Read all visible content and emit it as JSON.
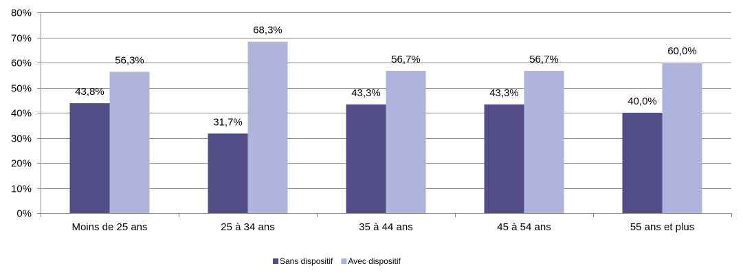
{
  "chart_data": {
    "type": "bar",
    "categories": [
      "Moins de 25 ans",
      "25 à 34 ans",
      "35 à 44 ans",
      "45 à 54 ans",
      "55 ans et plus"
    ],
    "series": [
      {
        "name": "Sans dispositif",
        "color": "#534d87",
        "values": [
          43.8,
          31.7,
          43.3,
          43.3,
          40.0
        ],
        "labels": [
          "43,8%",
          "31,7%",
          "43,3%",
          "43,3%",
          "40,0%"
        ]
      },
      {
        "name": "Avec dispositif",
        "color": "#afb4dc",
        "values": [
          56.3,
          68.3,
          56.7,
          56.7,
          60.0
        ],
        "labels": [
          "56,3%",
          "68,3%",
          "56,7%",
          "56,7%",
          "60,0%"
        ]
      }
    ],
    "ylim": [
      0,
      80
    ],
    "y_ticks": [
      0,
      10,
      20,
      30,
      40,
      50,
      60,
      70,
      80
    ],
    "y_tick_labels": [
      "0%",
      "10%",
      "20%",
      "30%",
      "40%",
      "50%",
      "60%",
      "70%",
      "80%"
    ],
    "grid": true,
    "grid_color": "#888888",
    "legend_position": "bottom",
    "title": "",
    "xlabel": "",
    "ylabel": ""
  }
}
